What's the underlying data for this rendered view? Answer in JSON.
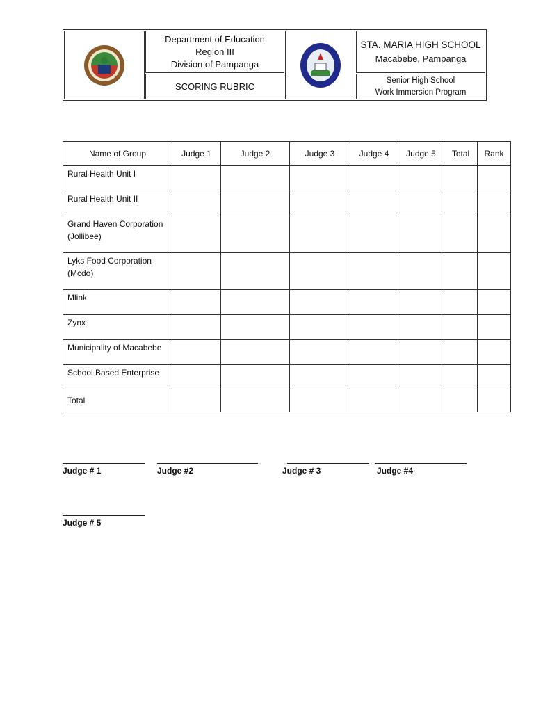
{
  "header": {
    "deped": [
      "Department of Education",
      "Region III",
      "Division of Pampanga"
    ],
    "title": "SCORING RUBRIC",
    "school": "STA. MARIA HIGH SCHOOL",
    "location": "Macabebe, Pampanga",
    "program": [
      "Senior High School",
      "Work Immersion Program"
    ],
    "logo_left": "DepEd seal",
    "logo_right": "STA. MARIA HIGH SCHOOL seal"
  },
  "table": {
    "columns": [
      "Name of Group",
      "Judge 1",
      "Judge 2",
      "Judge 3",
      "Judge 4",
      "Judge 5",
      "Total",
      "Rank"
    ],
    "rows": [
      [
        "Rural Health Unit I"
      ],
      [
        "Rural Health Unit II"
      ],
      [
        "Grand Haven Corporation (Jollibee)"
      ],
      [
        "Lyks Food Corporation (Mcdo)"
      ],
      [
        "Mlink"
      ],
      [
        "Zynx"
      ],
      [
        "Municipality of Macabebe"
      ],
      [
        "School Based Enterprise"
      ]
    ],
    "total_label": "Total"
  },
  "signatures": [
    "Judge  # 1",
    "Judge #2",
    "Judge # 3",
    "Judge #4",
    "Judge # 5"
  ]
}
